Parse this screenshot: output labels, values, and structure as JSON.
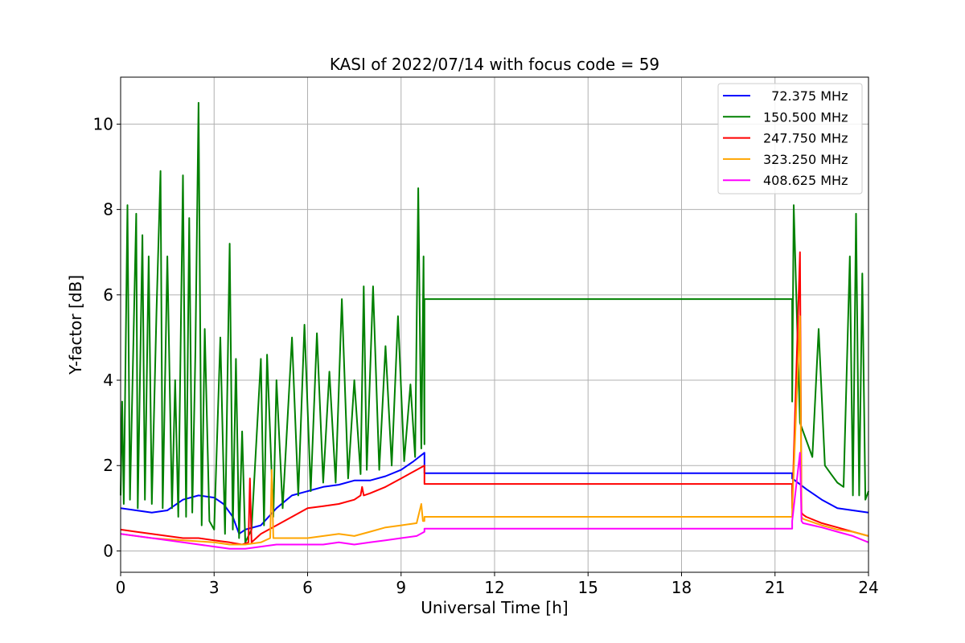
{
  "chart_data": {
    "type": "line",
    "title": "KASI of 2022/07/14 with focus code = 59",
    "xlabel": "Universal Time [h]",
    "ylabel": "Y-factor [dB]",
    "xlim": [
      0,
      24
    ],
    "ylim": [
      -0.5,
      11.1
    ],
    "xticks": [
      0,
      3,
      6,
      9,
      12,
      15,
      18,
      21,
      24
    ],
    "yticks": [
      0,
      2,
      4,
      6,
      8,
      10
    ],
    "grid": true,
    "legend_position": "top-right",
    "series": [
      {
        "name": "  72.375 MHz",
        "color": "#0000ff",
        "x": [
          0.0,
          0.5,
          1.0,
          1.5,
          2.0,
          2.5,
          3.0,
          3.3,
          3.6,
          3.8,
          4.0,
          4.5,
          5.0,
          5.5,
          6.0,
          6.5,
          7.0,
          7.5,
          8.0,
          8.5,
          9.0,
          9.4,
          9.75,
          9.75,
          21.55,
          21.55,
          22.0,
          22.5,
          23.0,
          23.5,
          24.0
        ],
        "y": [
          1.0,
          0.95,
          0.9,
          0.95,
          1.2,
          1.3,
          1.25,
          1.1,
          0.8,
          0.4,
          0.5,
          0.6,
          1.0,
          1.3,
          1.4,
          1.5,
          1.55,
          1.65,
          1.65,
          1.75,
          1.9,
          2.1,
          2.3,
          1.82,
          1.82,
          1.7,
          1.45,
          1.2,
          1.0,
          0.95,
          0.9
        ]
      },
      {
        "name": "150.500 MHz",
        "color": "#008000",
        "x": [
          0.0,
          0.05,
          0.1,
          0.22,
          0.3,
          0.5,
          0.55,
          0.7,
          0.78,
          0.9,
          1.0,
          1.15,
          1.28,
          1.35,
          1.5,
          1.65,
          1.75,
          1.85,
          2.0,
          2.1,
          2.2,
          2.3,
          2.4,
          2.5,
          2.6,
          2.7,
          2.85,
          3.0,
          3.2,
          3.35,
          3.5,
          3.6,
          3.7,
          3.8,
          3.9,
          4.0,
          4.2,
          4.5,
          4.6,
          4.7,
          4.9,
          5.0,
          5.2,
          5.5,
          5.7,
          5.9,
          6.1,
          6.3,
          6.5,
          6.7,
          6.9,
          7.1,
          7.3,
          7.5,
          7.7,
          7.8,
          7.9,
          8.1,
          8.3,
          8.5,
          8.7,
          8.9,
          9.1,
          9.3,
          9.45,
          9.55,
          9.65,
          9.72,
          9.75,
          9.75,
          21.55,
          21.55,
          21.6,
          21.8,
          22.0,
          22.2,
          22.4,
          22.6,
          22.8,
          23.0,
          23.2,
          23.4,
          23.5,
          23.6,
          23.7,
          23.8,
          23.9,
          24.0
        ],
        "y": [
          1.3,
          3.5,
          1.1,
          8.1,
          1.2,
          7.9,
          1.0,
          7.4,
          1.2,
          6.9,
          1.1,
          5.6,
          8.9,
          1.0,
          6.9,
          1.0,
          4.0,
          0.8,
          8.8,
          0.8,
          7.8,
          0.9,
          4.7,
          10.5,
          0.6,
          5.2,
          0.7,
          0.5,
          5.0,
          0.4,
          7.2,
          0.5,
          4.5,
          0.3,
          2.8,
          0.2,
          0.5,
          4.5,
          0.6,
          4.6,
          0.8,
          4.0,
          1.0,
          5.0,
          1.3,
          5.3,
          1.4,
          5.1,
          1.6,
          4.2,
          1.6,
          5.9,
          1.7,
          4.0,
          1.8,
          6.2,
          1.9,
          6.2,
          1.9,
          4.8,
          2.0,
          5.5,
          2.1,
          3.9,
          2.2,
          8.5,
          2.4,
          6.9,
          2.5,
          5.9,
          5.9,
          3.5,
          8.1,
          3.0,
          2.6,
          2.2,
          5.2,
          2.0,
          1.8,
          1.6,
          1.5,
          6.9,
          1.3,
          7.9,
          1.3,
          6.5,
          1.2,
          1.4
        ]
      },
      {
        "name": "247.750 MHz",
        "color": "#ff0000",
        "x": [
          0.0,
          0.5,
          1.0,
          1.5,
          2.0,
          2.5,
          3.0,
          3.5,
          3.9,
          4.1,
          4.15,
          4.2,
          4.5,
          5.0,
          5.5,
          6.0,
          6.5,
          7.0,
          7.5,
          7.7,
          7.75,
          7.8,
          8.0,
          8.5,
          9.0,
          9.5,
          9.75,
          9.75,
          21.55,
          21.55,
          21.8,
          21.85,
          21.9,
          22.0,
          22.5,
          23.0,
          23.5,
          24.0
        ],
        "y": [
          0.5,
          0.45,
          0.4,
          0.35,
          0.3,
          0.3,
          0.25,
          0.2,
          0.15,
          0.2,
          1.7,
          0.2,
          0.4,
          0.6,
          0.8,
          1.0,
          1.05,
          1.1,
          1.2,
          1.3,
          1.5,
          1.3,
          1.35,
          1.5,
          1.7,
          1.9,
          2.0,
          1.57,
          1.57,
          1.0,
          7.0,
          0.9,
          0.85,
          0.8,
          0.65,
          0.55,
          0.45,
          0.35
        ]
      },
      {
        "name": "323.250 MHz",
        "color": "#ffa500",
        "x": [
          0.0,
          1.0,
          2.0,
          3.0,
          3.5,
          4.0,
          4.5,
          4.8,
          4.85,
          4.9,
          5.5,
          6.0,
          6.5,
          7.0,
          7.5,
          8.0,
          8.5,
          9.0,
          9.5,
          9.65,
          9.7,
          9.75,
          9.75,
          21.55,
          21.55,
          21.8,
          21.85,
          21.9,
          22.5,
          23.0,
          23.5,
          24.0
        ],
        "y": [
          0.4,
          0.3,
          0.25,
          0.2,
          0.15,
          0.15,
          0.2,
          0.3,
          1.9,
          0.3,
          0.3,
          0.3,
          0.35,
          0.4,
          0.35,
          0.45,
          0.55,
          0.6,
          0.65,
          1.1,
          0.7,
          0.7,
          0.8,
          0.8,
          0.95,
          5.5,
          0.8,
          0.75,
          0.6,
          0.5,
          0.45,
          0.35
        ]
      },
      {
        "name": "408.625 MHz",
        "color": "#ff00ff",
        "x": [
          0.0,
          1.0,
          2.0,
          3.0,
          3.5,
          4.0,
          4.5,
          5.0,
          5.5,
          6.0,
          6.5,
          7.0,
          7.5,
          8.0,
          8.5,
          9.0,
          9.5,
          9.75,
          9.75,
          21.55,
          21.55,
          21.8,
          21.85,
          21.9,
          22.5,
          23.0,
          23.5,
          24.0
        ],
        "y": [
          0.4,
          0.3,
          0.2,
          0.1,
          0.05,
          0.05,
          0.1,
          0.15,
          0.15,
          0.15,
          0.15,
          0.2,
          0.15,
          0.2,
          0.25,
          0.3,
          0.35,
          0.45,
          0.52,
          0.52,
          0.7,
          2.3,
          0.7,
          0.65,
          0.55,
          0.45,
          0.35,
          0.2
        ]
      }
    ]
  }
}
